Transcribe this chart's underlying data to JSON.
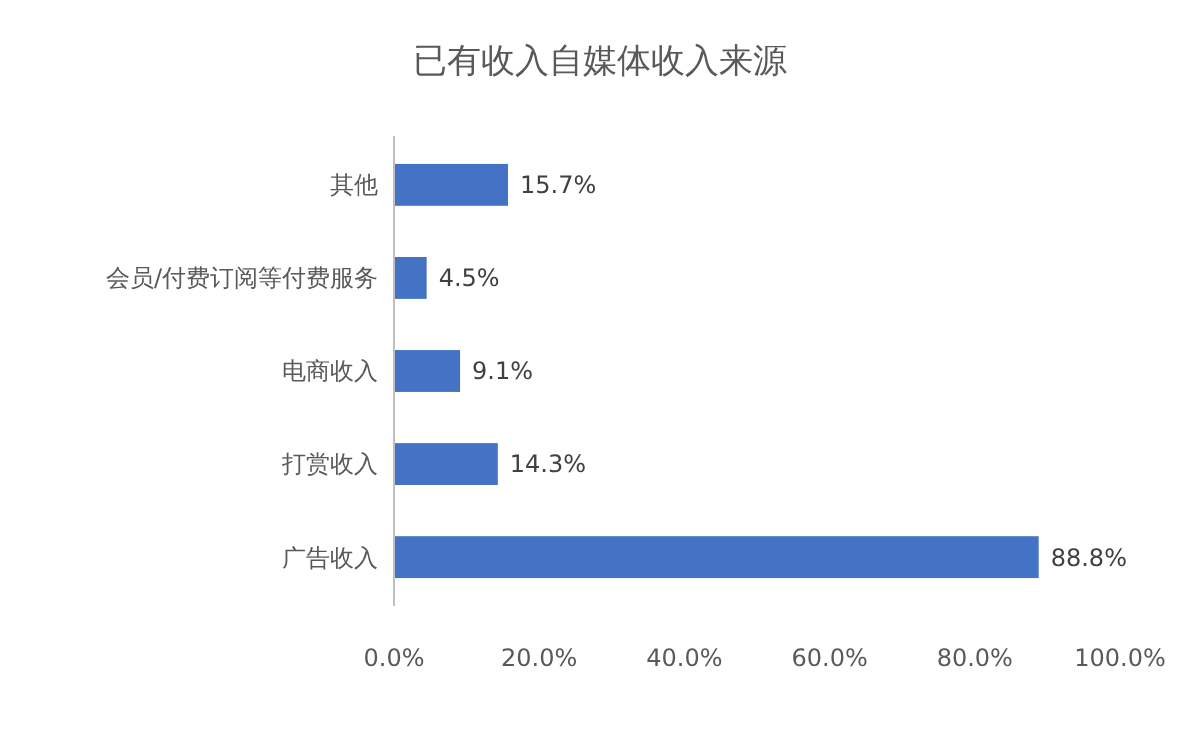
{
  "chart_data": {
    "type": "bar",
    "orientation": "horizontal",
    "title": "已有收入自媒体收入来源",
    "categories": [
      "其他",
      "会员/付费订阅等付费服务",
      "电商收入",
      "打赏收入",
      "广告收入"
    ],
    "values": [
      15.7,
      4.5,
      9.1,
      14.3,
      88.8
    ],
    "value_labels": [
      "15.7%",
      "4.5%",
      "9.1%",
      "14.3%",
      "88.8%"
    ],
    "color": "#4472c4",
    "xlim": [
      0,
      100
    ],
    "xticks": [
      {
        "value": 0,
        "label": "0.0%"
      },
      {
        "value": 20,
        "label": "20.0%"
      },
      {
        "value": 40,
        "label": "40.0%"
      },
      {
        "value": 60,
        "label": "60.0%"
      },
      {
        "value": 80,
        "label": "80.0%"
      },
      {
        "value": 100,
        "label": "100.0%"
      }
    ],
    "grid": false
  }
}
